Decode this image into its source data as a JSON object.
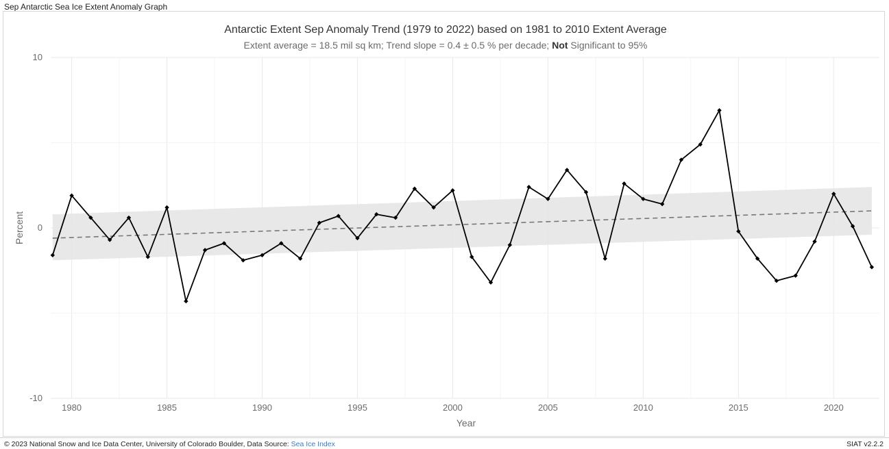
{
  "window_title": "Sep Antarctic Sea Ice Extent Anomaly Graph",
  "footer": {
    "credit_prefix": "© 2023 National Snow and Ice Data Center, University of Colorado Boulder, Data Source: ",
    "source_link": "Sea Ice Index",
    "version": "SIAT v2.2.2"
  },
  "chart_data": {
    "type": "line",
    "title": "Antarctic Extent Sep Anomaly Trend (1979 to 2022) based on 1981 to 2010 Extent Average",
    "subtitle_prefix": "Extent average = 18.5 mil sq km; Trend slope = 0.4 ± 0.5 % per decade; ",
    "subtitle_bold": "Not",
    "subtitle_suffix": " Significant to 95%",
    "xlabel": "Year",
    "ylabel": "Percent",
    "xlim": [
      1978.9,
      2022.4
    ],
    "ylim": [
      -10,
      10
    ],
    "x_ticks": [
      1980,
      1985,
      1990,
      1995,
      2000,
      2005,
      2010,
      2015,
      2020
    ],
    "y_ticks": [
      -10,
      0,
      10
    ],
    "grid": true,
    "series": [
      {
        "x": [
          1979,
          1980,
          1981,
          1982,
          1983,
          1984,
          1985,
          1986,
          1987,
          1988,
          1989,
          1990,
          1991,
          1992,
          1993,
          1994,
          1995,
          1996,
          1997,
          1998,
          1999,
          2000,
          2001,
          2002,
          2003,
          2004,
          2005,
          2006,
          2007,
          2008,
          2009,
          2010,
          2011,
          2012,
          2013,
          2014,
          2015,
          2016,
          2017,
          2018,
          2019,
          2020,
          2021,
          2022
        ],
        "values": [
          -1.6,
          1.9,
          0.6,
          -0.7,
          0.6,
          -1.7,
          1.2,
          -4.3,
          -1.3,
          -0.9,
          -1.9,
          -1.6,
          -0.9,
          -1.8,
          0.3,
          0.7,
          -0.6,
          0.8,
          0.6,
          2.3,
          1.2,
          2.2,
          -1.7,
          -3.2,
          -1.0,
          2.4,
          1.7,
          3.4,
          2.1,
          -1.8,
          2.6,
          1.7,
          1.4,
          4.0,
          4.9,
          6.9,
          -0.2,
          -1.8,
          -3.1,
          -2.8,
          -0.8,
          2.0,
          0.1,
          -2.3
        ],
        "color": "#000000"
      }
    ],
    "trend": {
      "x": [
        1979,
        2022
      ],
      "values": [
        -0.6,
        1.0
      ],
      "ci_lower": [
        -1.9,
        -0.4
      ],
      "ci_upper": [
        0.8,
        2.4
      ],
      "line_color": "#777777",
      "band_color": "#e6e6e6"
    }
  }
}
